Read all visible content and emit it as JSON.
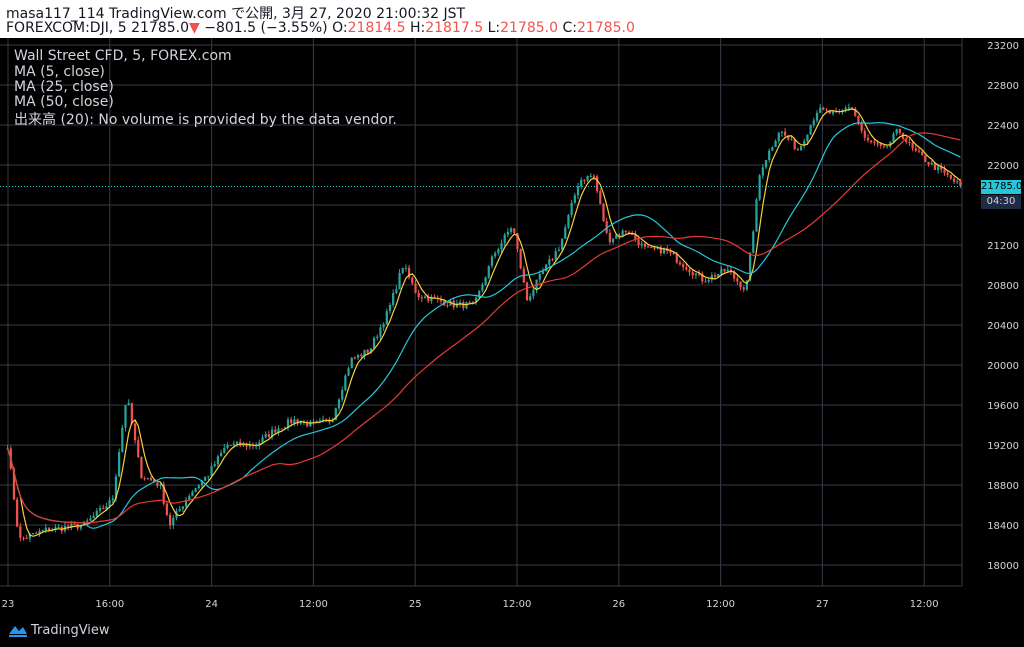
{
  "header": {
    "publisher": "masa117_114 TradingView.com で公開, 3月 27, 2020 21:00:32 JST",
    "symbol": "FOREXCOM:DJI, 5",
    "last": "21785.0",
    "change": "−801.5 (−3.55%)",
    "o_label": "O:",
    "o_value": "21814.5",
    "h_label": "H:",
    "h_value": "21817.5",
    "l_label": "L:",
    "l_value": "21785.0",
    "c_label": "C:",
    "c_value": "21785.0"
  },
  "legend": {
    "title": "Wall Street CFD, 5, FOREX.com",
    "ma5": "MA (5, close)",
    "ma25": "MA (25, close)",
    "ma50": "MA (50, close)",
    "volume": "出来高 (20): No volume is provided by the data vendor."
  },
  "badges": {
    "price": "21785.0",
    "countdown": "04:30"
  },
  "footer": {
    "brand": "TradingView"
  },
  "colors": {
    "background": "#000000",
    "grid": "#363a45",
    "axis_text": "#d1d4dc",
    "up": "#26a69a",
    "down": "#ef5350",
    "ma5": "#f7d13b",
    "ma25": "#26c6da",
    "ma50": "#e53935",
    "last_price": "#26c6da"
  },
  "chart_data": {
    "type": "candlestick",
    "title": "Wall Street CFD, 5, FOREX.com",
    "y_ticks": [
      18000,
      18400,
      18800,
      19200,
      19600,
      20000,
      20400,
      20800,
      21200,
      21600,
      22000,
      22400,
      22800,
      23200
    ],
    "ylim": [
      17790,
      23270
    ],
    "x_ticks": [
      "23",
      "16:00",
      "24",
      "12:00",
      "25",
      "12:00",
      "26",
      "12:00",
      "27",
      "12:00"
    ],
    "last_price": 21785.0,
    "series": [
      {
        "name": "MA (5, close)"
      },
      {
        "name": "MA (25, close)"
      },
      {
        "name": "MA (50, close)"
      }
    ],
    "price_path": [
      {
        "x": 0.0,
        "y": 19200
      },
      {
        "x": 0.012,
        "y": 18250
      },
      {
        "x": 0.04,
        "y": 18350
      },
      {
        "x": 0.08,
        "y": 18400
      },
      {
        "x": 0.11,
        "y": 18650
      },
      {
        "x": 0.125,
        "y": 19700
      },
      {
        "x": 0.14,
        "y": 18900
      },
      {
        "x": 0.16,
        "y": 18800
      },
      {
        "x": 0.17,
        "y": 18400
      },
      {
        "x": 0.19,
        "y": 18700
      },
      {
        "x": 0.21,
        "y": 18900
      },
      {
        "x": 0.23,
        "y": 19200
      },
      {
        "x": 0.26,
        "y": 19200
      },
      {
        "x": 0.28,
        "y": 19350
      },
      {
        "x": 0.3,
        "y": 19450
      },
      {
        "x": 0.32,
        "y": 19400
      },
      {
        "x": 0.34,
        "y": 19450
      },
      {
        "x": 0.36,
        "y": 20050
      },
      {
        "x": 0.38,
        "y": 20150
      },
      {
        "x": 0.4,
        "y": 20550
      },
      {
        "x": 0.415,
        "y": 21000
      },
      {
        "x": 0.43,
        "y": 20700
      },
      {
        "x": 0.45,
        "y": 20650
      },
      {
        "x": 0.47,
        "y": 20600
      },
      {
        "x": 0.49,
        "y": 20600
      },
      {
        "x": 0.51,
        "y": 21100
      },
      {
        "x": 0.53,
        "y": 21400
      },
      {
        "x": 0.545,
        "y": 20650
      },
      {
        "x": 0.56,
        "y": 20900
      },
      {
        "x": 0.58,
        "y": 21200
      },
      {
        "x": 0.6,
        "y": 21850
      },
      {
        "x": 0.615,
        "y": 21900
      },
      {
        "x": 0.63,
        "y": 21250
      },
      {
        "x": 0.65,
        "y": 21350
      },
      {
        "x": 0.67,
        "y": 21150
      },
      {
        "x": 0.69,
        "y": 21150
      },
      {
        "x": 0.71,
        "y": 21000
      },
      {
        "x": 0.73,
        "y": 20850
      },
      {
        "x": 0.755,
        "y": 20950
      },
      {
        "x": 0.775,
        "y": 20750
      },
      {
        "x": 0.79,
        "y": 21950
      },
      {
        "x": 0.81,
        "y": 22350
      },
      {
        "x": 0.83,
        "y": 22150
      },
      {
        "x": 0.85,
        "y": 22550
      },
      {
        "x": 0.87,
        "y": 22500
      },
      {
        "x": 0.885,
        "y": 22600
      },
      {
        "x": 0.9,
        "y": 22250
      },
      {
        "x": 0.92,
        "y": 22150
      },
      {
        "x": 0.935,
        "y": 22350
      },
      {
        "x": 0.95,
        "y": 22150
      },
      {
        "x": 0.97,
        "y": 22000
      },
      {
        "x": 0.985,
        "y": 21900
      },
      {
        "x": 1.0,
        "y": 21785
      }
    ]
  }
}
